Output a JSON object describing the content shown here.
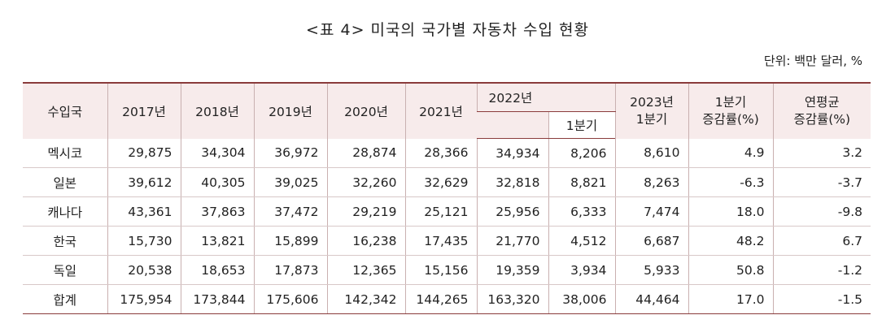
{
  "title": "<표 4> 미국의 국가별 자동차 수입 현황",
  "unit": "단위: 백만 달러, %",
  "header": {
    "country": "수입국",
    "years": [
      "2017년",
      "2018년",
      "2019년",
      "2020년",
      "2021년",
      "2022년"
    ],
    "q1": "1분기",
    "y2023_line1": "2023년",
    "y2023_line2": "1분기",
    "growth_line1": "1분기",
    "growth_line2": "증감률(%)",
    "cagr_line1": "연평균",
    "cagr_line2": "증감률(%)"
  },
  "rows": [
    {
      "country": "멕시코",
      "values": [
        "29,875",
        "34,304",
        "36,972",
        "28,874",
        "28,366",
        "34,934",
        "8,206",
        "8,610",
        "4.9",
        "3.2"
      ]
    },
    {
      "country": "일본",
      "values": [
        "39,612",
        "40,305",
        "39,025",
        "32,260",
        "32,629",
        "32,818",
        "8,821",
        "8,263",
        "-6.3",
        "-3.7"
      ]
    },
    {
      "country": "캐나다",
      "values": [
        "43,361",
        "37,863",
        "37,472",
        "29,219",
        "25,121",
        "25,956",
        "6,333",
        "7,474",
        "18.0",
        "-9.8"
      ]
    },
    {
      "country": "한국",
      "values": [
        "15,730",
        "13,821",
        "15,899",
        "16,238",
        "17,435",
        "21,770",
        "4,512",
        "6,687",
        "48.2",
        "6.7"
      ]
    },
    {
      "country": "독일",
      "values": [
        "20,538",
        "18,653",
        "17,873",
        "12,365",
        "15,156",
        "19,359",
        "3,934",
        "5,933",
        "50.8",
        "-1.2"
      ]
    },
    {
      "country": "합계",
      "values": [
        "175,954",
        "173,844",
        "175,606",
        "142,342",
        "144,265",
        "163,320",
        "38,006",
        "44,464",
        "17.0",
        "-1.5"
      ]
    }
  ]
}
